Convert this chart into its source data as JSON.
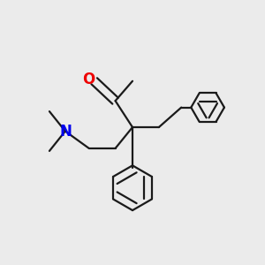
{
  "bg_color": "#ebebeb",
  "bond_color": "#1a1a1a",
  "N_color": "#0000ee",
  "O_color": "#ee0000",
  "line_width": 1.6,
  "figsize": [
    3.0,
    3.0
  ],
  "dpi": 100
}
